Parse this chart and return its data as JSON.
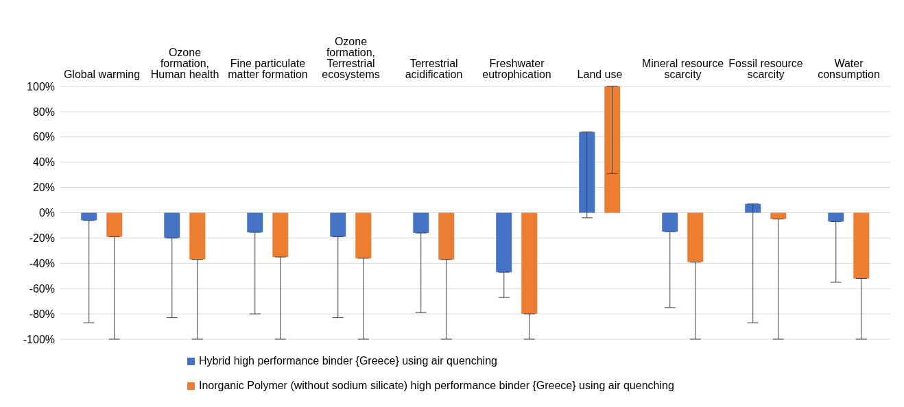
{
  "chart_data": {
    "type": "bar",
    "categories": [
      "Global warming",
      "Ozone formation, Human health",
      "Fine particulate matter formation",
      "Ozone formation, Terrestrial ecosystems",
      "Terrestrial acidification",
      "Freshwater eutrophication",
      "Land use",
      "Mineral resource scarcity",
      "Fossil resource scarcity",
      "Water consumption"
    ],
    "series": [
      {
        "name": "Hybrid high performance binder {Greece} using air quenching",
        "color": "#4472c4",
        "values": [
          -6,
          -20,
          -15.5,
          -19,
          -16,
          -47,
          64,
          -15,
          7,
          -7
        ],
        "errors": [
          [
            -87,
            -6
          ],
          [
            -83,
            -20
          ],
          [
            -80,
            -15.5
          ],
          [
            -83,
            -19
          ],
          [
            -79,
            -16
          ],
          [
            -67,
            -47
          ],
          [
            -4,
            64
          ],
          [
            -75,
            -15
          ],
          [
            -87,
            7
          ],
          [
            -55,
            -7
          ]
        ]
      },
      {
        "name": "Inorganic Polymer (without sodium silicate) high performance binder {Greece} using air quenching",
        "color": "#ed7d31",
        "values": [
          -19,
          -37,
          -35,
          -36,
          -37,
          -80,
          100,
          -39,
          -5,
          -52
        ],
        "errors": [
          [
            -100,
            -19
          ],
          [
            -100,
            -37
          ],
          [
            -100,
            -35
          ],
          [
            -100,
            -36
          ],
          [
            -100,
            -37
          ],
          [
            -100,
            -80
          ],
          [
            31,
            100
          ],
          [
            -100,
            -39
          ],
          [
            -100,
            -5
          ],
          [
            -100,
            -52
          ]
        ]
      }
    ],
    "ylim": [
      -100,
      100
    ],
    "yticks": [
      {
        "value": -100,
        "label": "-100%"
      },
      {
        "value": -80,
        "label": "-80%"
      },
      {
        "value": -60,
        "label": "-60%"
      },
      {
        "value": -40,
        "label": "-40%"
      },
      {
        "value": -20,
        "label": "-20%"
      },
      {
        "value": 0,
        "label": "0%"
      },
      {
        "value": 20,
        "label": "20%"
      },
      {
        "value": 40,
        "label": "40%"
      },
      {
        "value": 60,
        "label": "60%"
      },
      {
        "value": 80,
        "label": "80%"
      },
      {
        "value": 100,
        "label": "100%"
      }
    ],
    "grid": "y",
    "legend": "bottom"
  }
}
